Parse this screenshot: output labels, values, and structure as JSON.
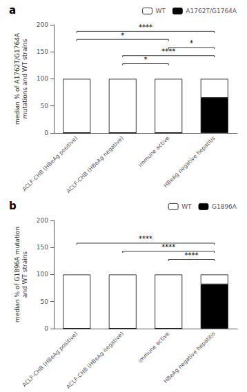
{
  "chart_data": [
    {
      "type": "bar",
      "title": "a",
      "ylabel": "median % of A1762T/G1764A\nmutations and WT strains",
      "categories": [
        "ACLF-CHB (HBeAg positive)",
        "ACLF-CHB (HBeAg negative)",
        "immune active",
        "HBeAg negative hepatitis"
      ],
      "series": [
        {
          "name": "WT",
          "color": "#ffffff",
          "values": [
            100,
            100,
            100,
            35
          ]
        },
        {
          "name": "A1762T/G1764A",
          "color": "#000000",
          "values": [
            0,
            0,
            0,
            65
          ]
        }
      ],
      "stacked": true,
      "ylim": [
        0,
        200
      ],
      "yticks": [
        0,
        50,
        100,
        150,
        200
      ],
      "grid": false,
      "legend": "upper right",
      "annotations": [
        {
          "x1": "ACLF-CHB (HBeAg positive)",
          "x2": "HBeAg negative hepatitis",
          "y": 188,
          "text": "****"
        },
        {
          "x1": "ACLF-CHB (HBeAg positive)",
          "x2": "immune active",
          "y": 173,
          "text": "*"
        },
        {
          "x1": "immune active",
          "x2": "HBeAg negative hepatitis",
          "y": 158,
          "text": "*"
        },
        {
          "x1": "ACLF-CHB (HBeAg negative)",
          "x2": "HBeAg negative hepatitis",
          "y": 143,
          "text": "****"
        },
        {
          "x1": "ACLF-CHB (HBeAg negative)",
          "x2": "immune active",
          "y": 128,
          "text": "*"
        }
      ]
    },
    {
      "type": "bar",
      "title": "b",
      "ylabel": "median % of G1896A mutation\nand WT strains",
      "categories": [
        "ACLF-CHB (HBeAg positive)",
        "ACLF-CHB (HBeAg negative)",
        "immune active",
        "HBeAg negative hepatitis"
      ],
      "series": [
        {
          "name": "WT",
          "color": "#ffffff",
          "values": [
            100,
            100,
            100,
            18
          ]
        },
        {
          "name": "G1896A",
          "color": "#000000",
          "values": [
            0,
            0,
            0,
            82
          ]
        }
      ],
      "stacked": true,
      "ylim": [
        0,
        200
      ],
      "yticks": [
        0,
        50,
        100,
        150,
        200
      ],
      "grid": false,
      "legend": "upper right",
      "annotations": [
        {
          "x1": "ACLF-CHB (HBeAg positive)",
          "x2": "HBeAg negative hepatitis",
          "y": 158,
          "text": "****"
        },
        {
          "x1": "ACLF-CHB (HBeAg negative)",
          "x2": "HBeAg negative hepatitis",
          "y": 143,
          "text": "****"
        },
        {
          "x1": "immune active",
          "x2": "HBeAg negative hepatitis",
          "y": 128,
          "text": "****"
        }
      ]
    }
  ]
}
